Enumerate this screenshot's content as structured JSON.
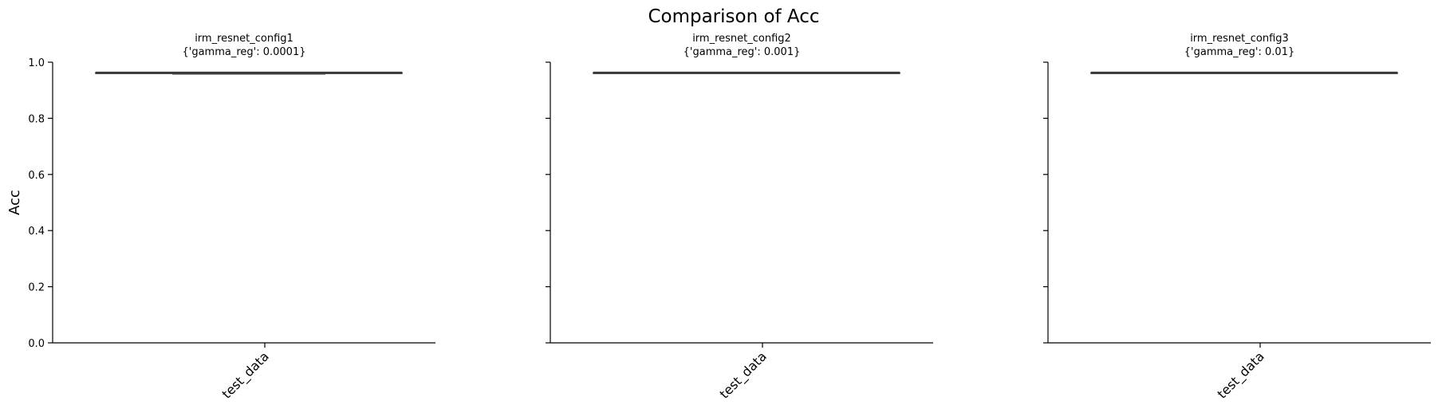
{
  "figure": {
    "title": "Comparison of Acc"
  },
  "colors": {
    "box_line": "#3a3a3a",
    "axis": "#000000",
    "text": "#000000",
    "background": "#ffffff"
  },
  "chart_data": [
    {
      "type": "box",
      "title_line1": "irm_resnet_config1",
      "title_line2": "{'gamma_reg': 0.0001}",
      "categories": [
        "test_data"
      ],
      "ylabel": "Acc",
      "ylim": [
        0,
        1
      ],
      "yticks": [
        0.0,
        0.2,
        0.4,
        0.6,
        0.8,
        1.0
      ],
      "ytick_labels": [
        "0.0",
        "0.2",
        "0.4",
        "0.6",
        "0.8",
        "1.0"
      ],
      "show_ytick_labels": true,
      "boxes": [
        {
          "category": "test_data",
          "min": 0.958,
          "q1": 0.961,
          "median": 0.962,
          "q3": 0.963,
          "max": 0.963
        }
      ]
    },
    {
      "type": "box",
      "title_line1": "irm_resnet_config2",
      "title_line2": "{'gamma_reg': 0.001}",
      "categories": [
        "test_data"
      ],
      "ylabel": "",
      "ylim": [
        0,
        1
      ],
      "yticks": [
        0.0,
        0.2,
        0.4,
        0.6,
        0.8,
        1.0
      ],
      "ytick_labels": [
        "",
        "",
        "",
        "",
        "",
        ""
      ],
      "show_ytick_labels": false,
      "boxes": [
        {
          "category": "test_data",
          "min": 0.961,
          "q1": 0.962,
          "median": 0.962,
          "q3": 0.963,
          "max": 0.963
        }
      ]
    },
    {
      "type": "box",
      "title_line1": "irm_resnet_config3",
      "title_line2": "{'gamma_reg': 0.01}",
      "categories": [
        "test_data"
      ],
      "ylabel": "",
      "ylim": [
        0,
        1
      ],
      "yticks": [
        0.0,
        0.2,
        0.4,
        0.6,
        0.8,
        1.0
      ],
      "ytick_labels": [
        "",
        "",
        "",
        "",
        "",
        ""
      ],
      "show_ytick_labels": false,
      "boxes": [
        {
          "category": "test_data",
          "min": 0.961,
          "q1": 0.962,
          "median": 0.962,
          "q3": 0.963,
          "max": 0.963
        }
      ]
    }
  ]
}
